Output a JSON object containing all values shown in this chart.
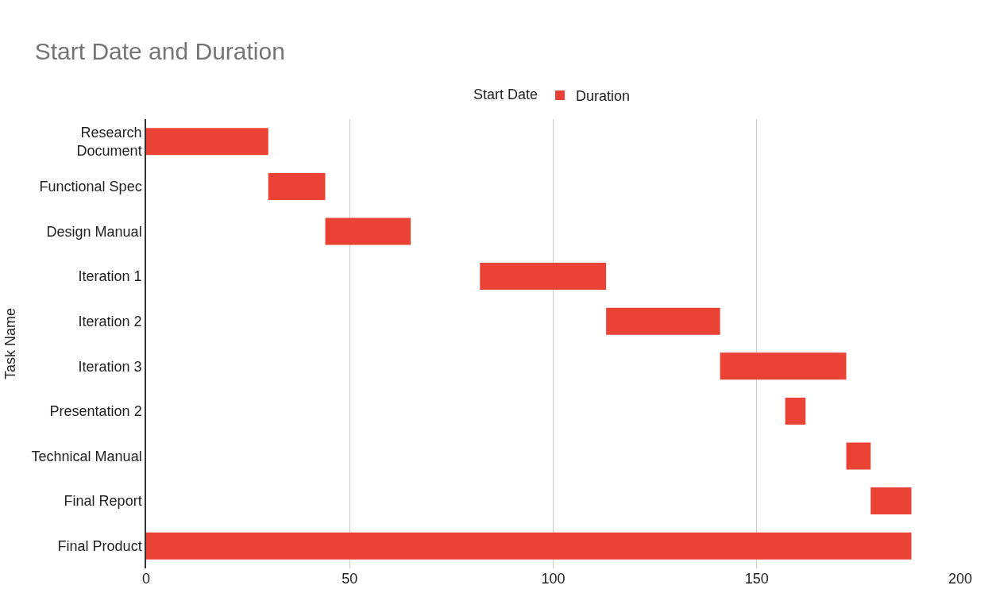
{
  "chart_data": {
    "type": "bar",
    "orientation": "horizontal",
    "legend_title": "Start Date",
    "title": "Start Date and Duration",
    "ylabel": "Task Name",
    "categories": [
      "Research Document",
      "Functional Spec",
      "Design Manual",
      "Iteration 1",
      "Iteration 2",
      "Iteration 3",
      "Presentation 2",
      "Technical Manual",
      "Final Report",
      "Final Product"
    ],
    "series": [
      {
        "name": "Duration",
        "color": "#ea4335",
        "base": [
          0,
          30,
          44,
          82,
          113,
          141,
          157,
          172,
          178,
          0
        ],
        "values": [
          30,
          14,
          21,
          31,
          28,
          31,
          5,
          6,
          10,
          188
        ]
      }
    ],
    "xlim": [
      0,
      200
    ],
    "xticks": [
      0,
      50,
      100,
      150,
      200
    ],
    "grid": "x",
    "legend": "top"
  }
}
